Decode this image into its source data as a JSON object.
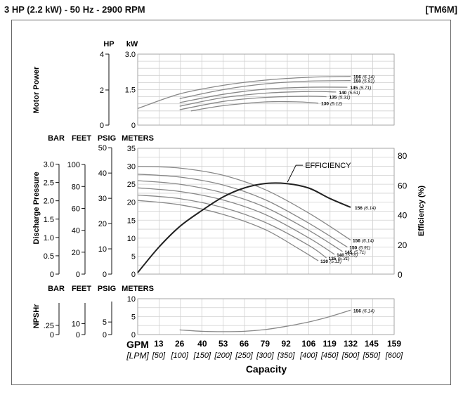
{
  "header": {
    "title": "3 HP (2.2 kW) - 50 Hz - 2900 RPM",
    "code": "[TM6M]"
  },
  "chart_data": [
    {
      "type": "line",
      "panel": "motor-power",
      "ylabel": "Motor Power",
      "axes": [
        {
          "unit": "HP",
          "ticks": [
            "4",
            "2",
            "0"
          ]
        },
        {
          "unit": "kW",
          "ticks": [
            "3.0",
            "1.5",
            "0"
          ]
        }
      ],
      "ylim": [
        0,
        3.0
      ],
      "series": [
        {
          "name": "156",
          "sub": "(6.14)",
          "x": [
            0,
            26,
            53,
            79,
            106,
            132
          ],
          "y": [
            0.7,
            1.32,
            1.68,
            1.9,
            2.02,
            2.06
          ]
        },
        {
          "name": "150",
          "sub": "(5.91)",
          "x": [
            26,
            53,
            79,
            106,
            132
          ],
          "y": [
            1.12,
            1.5,
            1.74,
            1.86,
            1.88
          ]
        },
        {
          "name": "145",
          "sub": "(5.71)",
          "x": [
            26,
            53,
            79,
            106,
            130
          ],
          "y": [
            0.95,
            1.3,
            1.52,
            1.6,
            1.6
          ]
        },
        {
          "name": "140",
          "sub": "(5.51)",
          "x": [
            26,
            53,
            79,
            106,
            123
          ],
          "y": [
            0.8,
            1.16,
            1.35,
            1.42,
            1.4
          ]
        },
        {
          "name": "135",
          "sub": "(5.31)",
          "x": [
            26,
            53,
            79,
            106,
            117
          ],
          "y": [
            0.65,
            1.0,
            1.17,
            1.22,
            1.2
          ]
        },
        {
          "name": "130",
          "sub": "(5.12)",
          "x": [
            33,
            53,
            79,
            100,
            112
          ],
          "y": [
            0.6,
            0.82,
            0.98,
            0.98,
            0.93
          ]
        }
      ]
    },
    {
      "type": "line",
      "panel": "discharge-pressure",
      "ylabel": "Discharge Pressure",
      "axes": [
        {
          "unit": "BAR",
          "ticks": [
            "3.0",
            "2.5",
            "2.0",
            "1.5",
            "1.0",
            "0.5",
            "0"
          ]
        },
        {
          "unit": "FEET",
          "ticks": [
            "100",
            "80",
            "60",
            "40",
            "20",
            "0"
          ]
        },
        {
          "unit": "PSIG",
          "ticks": [
            "50",
            "40",
            "30",
            "20",
            "10",
            "0"
          ]
        },
        {
          "unit": "METERS",
          "ticks": [
            "35",
            "30",
            "25",
            "20",
            "15",
            "10",
            "5",
            "0"
          ]
        }
      ],
      "ylim": [
        0,
        35
      ],
      "right_axis": {
        "label": "Efficiency (%)",
        "ticks": [
          "80",
          "60",
          "40",
          "20",
          "0"
        ],
        "range": [
          0,
          80
        ]
      },
      "efficiency": {
        "label": "EFFICIENCY",
        "name": "156",
        "sub": "(6.14)",
        "x": [
          0,
          13,
          26,
          40,
          53,
          66,
          79,
          92,
          106,
          119,
          132
        ],
        "y": [
          1,
          18,
          32,
          43,
          52,
          58,
          61,
          61,
          58,
          51,
          45
        ]
      },
      "series": [
        {
          "name": "156",
          "sub": "(6.14)",
          "x": [
            0,
            26,
            53,
            79,
            106,
            132
          ],
          "y": [
            30,
            29.5,
            27.5,
            23.5,
            17,
            9.5
          ]
        },
        {
          "name": "150",
          "sub": "(5.91)",
          "x": [
            0,
            26,
            53,
            79,
            106,
            130
          ],
          "y": [
            27.8,
            27,
            24.8,
            20.7,
            14.2,
            7.5
          ]
        },
        {
          "name": "145",
          "sub": "(5.71)",
          "x": [
            0,
            26,
            53,
            79,
            106,
            127
          ],
          "y": [
            26,
            25,
            22.6,
            18.6,
            12.2,
            6.3
          ]
        },
        {
          "name": "140",
          "sub": "(5.51)",
          "x": [
            0,
            26,
            53,
            79,
            106,
            122
          ],
          "y": [
            24,
            23,
            20.6,
            16.6,
            10.1,
            5.5
          ]
        },
        {
          "name": "135",
          "sub": "(5.31)",
          "x": [
            0,
            26,
            53,
            79,
            106,
            117
          ],
          "y": [
            22,
            21,
            18.5,
            14.4,
            8,
            4.5
          ]
        },
        {
          "name": "130",
          "sub": "(5.12)",
          "x": [
            0,
            26,
            53,
            79,
            100,
            112
          ],
          "y": [
            20.5,
            19.3,
            16.6,
            12.4,
            7,
            3.7
          ]
        }
      ]
    },
    {
      "type": "line",
      "panel": "npshr",
      "ylabel": "NPSHr",
      "axes": [
        {
          "unit": "BAR",
          "ticks": [
            ".25",
            "0"
          ]
        },
        {
          "unit": "FEET",
          "ticks": [
            "10",
            "0"
          ]
        },
        {
          "unit": "PSIG",
          "ticks": [
            "5",
            "0"
          ]
        },
        {
          "unit": "METERS",
          "ticks": [
            "10",
            "5",
            "0"
          ]
        }
      ],
      "ylim": [
        0,
        10
      ],
      "series": [
        {
          "name": "156",
          "sub": "(6.14)",
          "x": [
            26,
            40,
            53,
            66,
            79,
            92,
            106,
            119,
            132
          ],
          "y": [
            1.3,
            0.9,
            0.8,
            0.9,
            1.4,
            2.3,
            3.5,
            5,
            6.8
          ]
        }
      ]
    }
  ],
  "xaxis": {
    "gpm_label": "GPM",
    "lpm_label": "[LPM]",
    "gpm": [
      "13",
      "26",
      "40",
      "53",
      "66",
      "79",
      "92",
      "106",
      "119",
      "132",
      "145",
      "159"
    ],
    "lpm": [
      "[50]",
      "[100]",
      "[150]",
      "[200]",
      "[250]",
      "[300]",
      "[350]",
      "[400]",
      "[450]",
      "[500]",
      "[550]",
      "[600]"
    ],
    "title": "Capacity",
    "range": [
      0,
      159
    ]
  },
  "colors": {
    "curve": "#888888",
    "efficiency": "#222222",
    "grid": "#d0d0d0"
  }
}
